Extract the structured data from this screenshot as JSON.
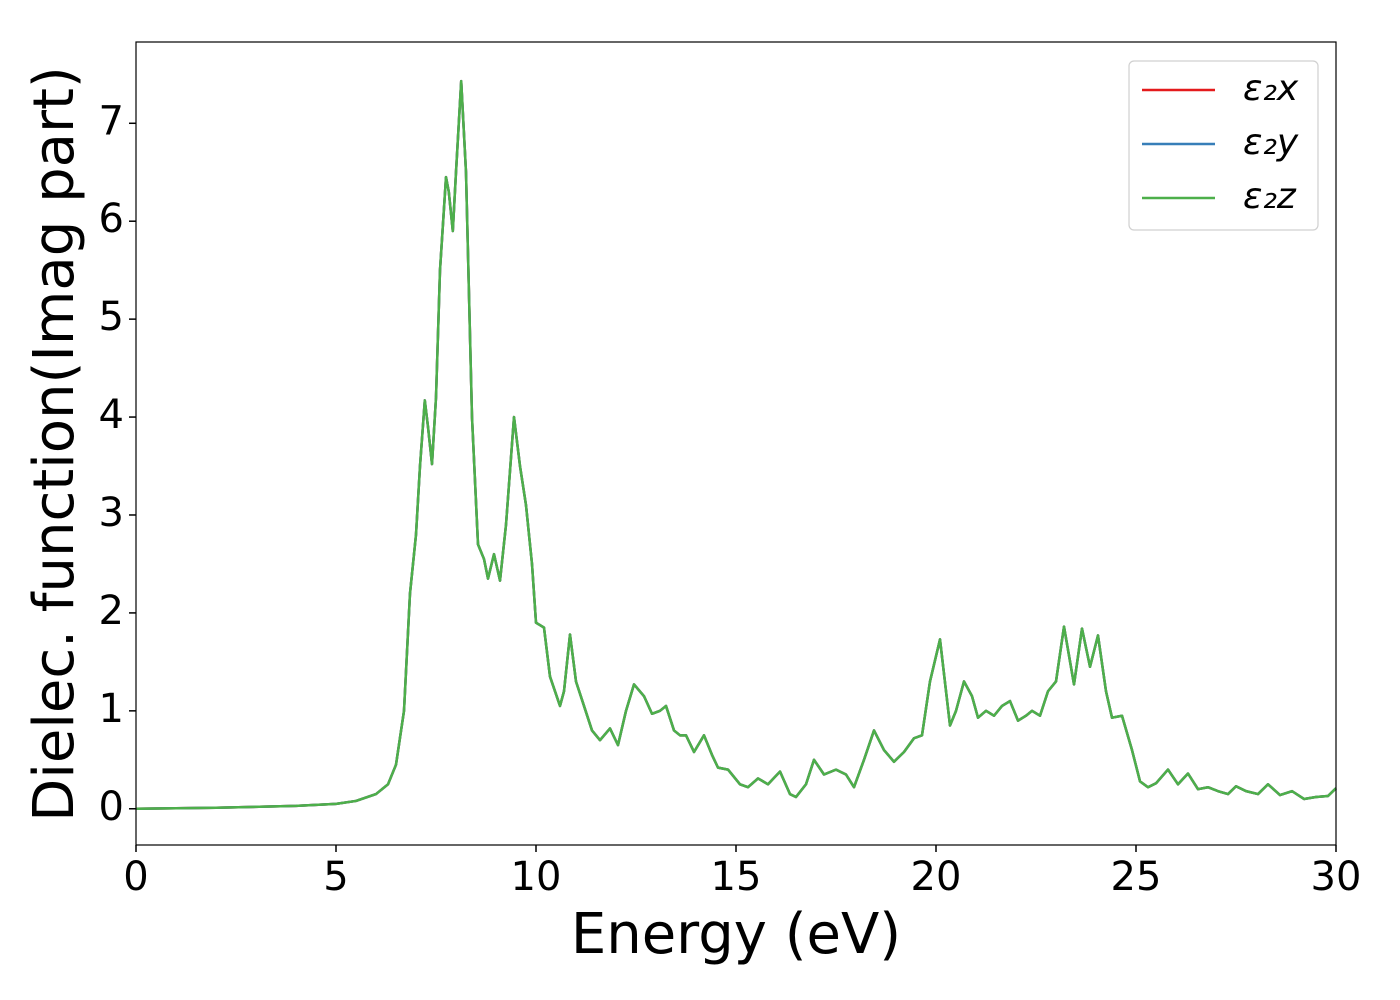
{
  "chart_data": {
    "type": "line",
    "xlabel": "Energy (eV)",
    "ylabel": "Dielec. function(Imag part)",
    "x": [
      0,
      2,
      4,
      5,
      5.5,
      6,
      6.3,
      6.5,
      6.7,
      6.85,
      7.0,
      7.1,
      7.22,
      7.3,
      7.4,
      7.5,
      7.6,
      7.75,
      7.82,
      7.92,
      8.0,
      8.13,
      8.25,
      8.4,
      8.55,
      8.7,
      8.8,
      8.95,
      9.1,
      9.25,
      9.45,
      9.6,
      9.75,
      9.9,
      10.0,
      10.2,
      10.35,
      10.6,
      10.7,
      10.85,
      11.0,
      11.2,
      11.4,
      11.6,
      11.85,
      12.05,
      12.25,
      12.45,
      12.7,
      12.9,
      13.1,
      13.25,
      13.45,
      13.6,
      13.75,
      13.95,
      14.2,
      14.4,
      14.55,
      14.8,
      15.1,
      15.3,
      15.55,
      15.8,
      16.1,
      16.35,
      16.5,
      16.75,
      16.95,
      17.2,
      17.5,
      17.75,
      17.95,
      18.2,
      18.45,
      18.7,
      18.95,
      19.2,
      19.45,
      19.65,
      19.85,
      20.1,
      20.35,
      20.5,
      20.7,
      20.9,
      21.05,
      21.25,
      21.45,
      21.65,
      21.85,
      22.05,
      22.25,
      22.4,
      22.6,
      22.8,
      23.0,
      23.2,
      23.45,
      23.65,
      23.85,
      24.05,
      24.25,
      24.4,
      24.65,
      24.9,
      25.1,
      25.3,
      25.5,
      25.8,
      26.05,
      26.3,
      26.55,
      26.8,
      27.05,
      27.3,
      27.5,
      27.75,
      28.05,
      28.3,
      28.6,
      28.9,
      29.2,
      29.5,
      29.8,
      30.0
    ],
    "series": [
      {
        "name": "ε₂x",
        "color": "#e41a1c",
        "values": [
          0.0,
          0.01,
          0.03,
          0.05,
          0.08,
          0.15,
          0.25,
          0.45,
          1.0,
          2.2,
          2.8,
          3.5,
          4.17,
          3.9,
          3.52,
          4.2,
          5.5,
          6.45,
          6.3,
          5.9,
          6.5,
          7.43,
          6.5,
          4.0,
          2.7,
          2.55,
          2.35,
          2.6,
          2.33,
          2.9,
          4.0,
          3.5,
          3.1,
          2.5,
          1.9,
          1.85,
          1.35,
          1.05,
          1.2,
          1.78,
          1.3,
          1.05,
          0.8,
          0.7,
          0.82,
          0.65,
          1.0,
          1.27,
          1.15,
          0.97,
          1.0,
          1.05,
          0.8,
          0.75,
          0.75,
          0.58,
          0.75,
          0.55,
          0.42,
          0.4,
          0.25,
          0.22,
          0.31,
          0.25,
          0.38,
          0.15,
          0.12,
          0.25,
          0.5,
          0.35,
          0.4,
          0.35,
          0.22,
          0.5,
          0.8,
          0.6,
          0.48,
          0.58,
          0.72,
          0.75,
          1.3,
          1.73,
          0.85,
          1.0,
          1.3,
          1.15,
          0.93,
          1.0,
          0.95,
          1.05,
          1.1,
          0.9,
          0.95,
          1.0,
          0.95,
          1.2,
          1.3,
          1.86,
          1.27,
          1.84,
          1.45,
          1.77,
          1.2,
          0.93,
          0.95,
          0.6,
          0.28,
          0.22,
          0.26,
          0.4,
          0.25,
          0.36,
          0.2,
          0.22,
          0.18,
          0.15,
          0.23,
          0.18,
          0.15,
          0.25,
          0.14,
          0.18,
          0.1,
          0.12,
          0.13,
          0.21
        ]
      },
      {
        "name": "ε₂y",
        "color": "#377eb8",
        "values": [
          0.0,
          0.01,
          0.03,
          0.05,
          0.08,
          0.15,
          0.25,
          0.45,
          1.0,
          2.2,
          2.8,
          3.5,
          4.17,
          3.9,
          3.52,
          4.2,
          5.5,
          6.45,
          6.3,
          5.9,
          6.5,
          7.43,
          6.5,
          4.0,
          2.7,
          2.55,
          2.35,
          2.6,
          2.33,
          2.9,
          4.0,
          3.5,
          3.1,
          2.5,
          1.9,
          1.85,
          1.35,
          1.05,
          1.2,
          1.78,
          1.3,
          1.05,
          0.8,
          0.7,
          0.82,
          0.65,
          1.0,
          1.27,
          1.15,
          0.97,
          1.0,
          1.05,
          0.8,
          0.75,
          0.75,
          0.58,
          0.75,
          0.55,
          0.42,
          0.4,
          0.25,
          0.22,
          0.31,
          0.25,
          0.38,
          0.15,
          0.12,
          0.25,
          0.5,
          0.35,
          0.4,
          0.35,
          0.22,
          0.5,
          0.8,
          0.6,
          0.48,
          0.58,
          0.72,
          0.75,
          1.3,
          1.73,
          0.85,
          1.0,
          1.3,
          1.15,
          0.93,
          1.0,
          0.95,
          1.05,
          1.1,
          0.9,
          0.95,
          1.0,
          0.95,
          1.2,
          1.3,
          1.86,
          1.27,
          1.84,
          1.45,
          1.77,
          1.2,
          0.93,
          0.95,
          0.6,
          0.28,
          0.22,
          0.26,
          0.4,
          0.25,
          0.36,
          0.2,
          0.22,
          0.18,
          0.15,
          0.23,
          0.18,
          0.15,
          0.25,
          0.14,
          0.18,
          0.1,
          0.12,
          0.13,
          0.21
        ]
      },
      {
        "name": "ε₂z",
        "color": "#4daf4a",
        "values": [
          0.0,
          0.01,
          0.03,
          0.05,
          0.08,
          0.15,
          0.25,
          0.45,
          1.0,
          2.2,
          2.8,
          3.5,
          4.17,
          3.9,
          3.52,
          4.2,
          5.5,
          6.45,
          6.3,
          5.9,
          6.5,
          7.43,
          6.5,
          4.0,
          2.7,
          2.55,
          2.35,
          2.6,
          2.33,
          2.9,
          4.0,
          3.5,
          3.1,
          2.5,
          1.9,
          1.85,
          1.35,
          1.05,
          1.2,
          1.78,
          1.3,
          1.05,
          0.8,
          0.7,
          0.82,
          0.65,
          1.0,
          1.27,
          1.15,
          0.97,
          1.0,
          1.05,
          0.8,
          0.75,
          0.75,
          0.58,
          0.75,
          0.55,
          0.42,
          0.4,
          0.25,
          0.22,
          0.31,
          0.25,
          0.38,
          0.15,
          0.12,
          0.25,
          0.5,
          0.35,
          0.4,
          0.35,
          0.22,
          0.5,
          0.8,
          0.6,
          0.48,
          0.58,
          0.72,
          0.75,
          1.3,
          1.73,
          0.85,
          1.0,
          1.3,
          1.15,
          0.93,
          1.0,
          0.95,
          1.05,
          1.1,
          0.9,
          0.95,
          1.0,
          0.95,
          1.2,
          1.3,
          1.86,
          1.27,
          1.84,
          1.45,
          1.77,
          1.2,
          0.93,
          0.95,
          0.6,
          0.28,
          0.22,
          0.26,
          0.4,
          0.25,
          0.36,
          0.2,
          0.22,
          0.18,
          0.15,
          0.23,
          0.18,
          0.15,
          0.25,
          0.14,
          0.18,
          0.1,
          0.12,
          0.13,
          0.21
        ]
      }
    ],
    "xlim": [
      0,
      30
    ],
    "xticks": [
      0,
      5,
      10,
      15,
      20,
      25,
      30
    ],
    "ylim": [
      -0.37,
      7.83
    ],
    "yticks": [
      0,
      1,
      2,
      3,
      4,
      5,
      6,
      7
    ],
    "grid": false,
    "legend": "upper right"
  }
}
